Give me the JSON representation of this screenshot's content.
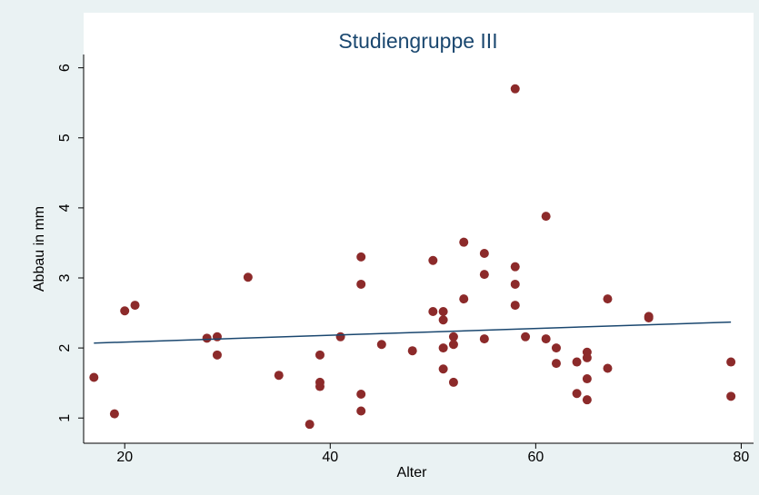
{
  "chart_data": {
    "type": "scatter",
    "title": "Studiengruppe III",
    "x_label": "Alter",
    "y_label": "Abbau in mm",
    "xlim": [
      16,
      81.2
    ],
    "ylim": [
      0.64,
      6.19
    ],
    "xticks": [
      20,
      40,
      60,
      80
    ],
    "yticks": [
      1,
      2,
      3,
      4,
      5,
      6
    ],
    "grid": false,
    "points": {
      "color": "#8c2a2a",
      "x": [
        17,
        19,
        20,
        21,
        28,
        29,
        29,
        32,
        35,
        38,
        39,
        39,
        39,
        41,
        43,
        43,
        43,
        43,
        45,
        48,
        50,
        50,
        51,
        51,
        51,
        51,
        52,
        52,
        52,
        53,
        53,
        55,
        55,
        55,
        58,
        58,
        58,
        58,
        59,
        61,
        61,
        62,
        62,
        64,
        64,
        65,
        65,
        65,
        65,
        67,
        67,
        71,
        71,
        79,
        79
      ],
      "values": [
        1.58,
        1.06,
        2.53,
        2.61,
        2.14,
        2.16,
        1.9,
        3.01,
        1.61,
        0.91,
        1.9,
        1.51,
        1.45,
        2.16,
        3.3,
        2.91,
        1.34,
        1.1,
        2.05,
        1.96,
        3.25,
        2.52,
        2.52,
        2.4,
        2.0,
        1.7,
        2.16,
        2.05,
        1.51,
        3.51,
        2.7,
        3.35,
        3.05,
        2.13,
        5.7,
        3.16,
        2.91,
        2.61,
        2.16,
        3.88,
        2.13,
        2.0,
        1.78,
        1.8,
        1.35,
        1.94,
        1.86,
        1.56,
        1.26,
        2.7,
        1.71,
        2.45,
        2.43,
        1.8,
        1.31
      ]
    },
    "fit_line": {
      "color": "#1a476f",
      "x": [
        17,
        79
      ],
      "values": [
        2.07,
        2.37
      ]
    }
  }
}
